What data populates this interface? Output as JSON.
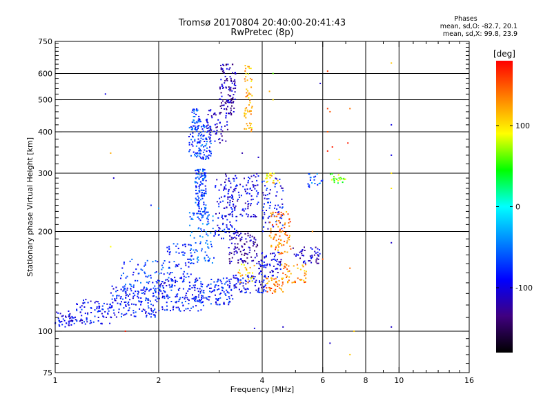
{
  "chart_data": {
    "type": "scatter",
    "title": "Tromsø 20170804 20:40:00-20:41:43",
    "subtitle": "RwPretec (8p)",
    "xlabel": "Frequency [MHz]",
    "ylabel": "Stationary phase Virtual Height [km]",
    "x_scale": "log",
    "y_scale": "log",
    "xlim": [
      1,
      16
    ],
    "ylim": [
      75,
      750
    ],
    "x_ticks": [
      1,
      2,
      4,
      6,
      8,
      10,
      16
    ],
    "x_tick_labels": [
      "1",
      "2",
      "4",
      "6",
      "8",
      "10",
      "16"
    ],
    "x_grid_lines": [
      2,
      4,
      6,
      8,
      10
    ],
    "y_ticks": [
      75,
      100,
      200,
      300,
      400,
      500,
      600,
      750
    ],
    "y_tick_labels": [
      "75",
      "100",
      "200",
      "300",
      "400",
      "500",
      "600",
      "750"
    ],
    "y_grid_lines": [
      100,
      200,
      300,
      400,
      500,
      600
    ],
    "grid": true,
    "colorbar": {
      "label": "[deg]",
      "range": [
        -180,
        180
      ],
      "ticks": [
        100,
        0,
        -100
      ],
      "tick_labels": [
        "100",
        "0",
        "-100"
      ],
      "colors": [
        "#ff0000",
        "#ff8000",
        "#ffff00",
        "#00ff00",
        "#00ffff",
        "#0080ff",
        "#0000ff",
        "#400080",
        "#000000"
      ]
    },
    "phase_stats": {
      "header": "Phases",
      "o_label": "mean, sd,O:",
      "o_values": "-82.7, 20.1",
      "x_label": "mean, sd,X:",
      "x_values": "99.8, 23.9"
    },
    "clusters": [
      {
        "f": [
          1.0,
          1.12
        ],
        "h": [
          102,
          115
        ],
        "phase": -95,
        "n": 40
      },
      {
        "f": [
          1.12,
          1.45
        ],
        "h": [
          105,
          125
        ],
        "phase": -90,
        "n": 90
      },
      {
        "f": [
          1.45,
          2.0
        ],
        "h": [
          110,
          138
        ],
        "phase": -85,
        "n": 150
      },
      {
        "f": [
          1.55,
          2.1
        ],
        "h": [
          125,
          165
        ],
        "phase": -70,
        "n": 80
      },
      {
        "f": [
          2.0,
          2.7
        ],
        "h": [
          115,
          145
        ],
        "phase": -85,
        "n": 150
      },
      {
        "f": [
          2.1,
          2.5
        ],
        "h": [
          145,
          185
        ],
        "phase": -75,
        "n": 60
      },
      {
        "f": [
          2.6,
          3.3
        ],
        "h": [
          120,
          145
        ],
        "phase": -80,
        "n": 110
      },
      {
        "f": [
          2.45,
          2.9
        ],
        "h": [
          160,
          230
        ],
        "phase": -60,
        "n": 90
      },
      {
        "f": [
          2.55,
          2.75
        ],
        "h": [
          220,
          310
        ],
        "phase": -70,
        "n": 120
      },
      {
        "f": [
          2.45,
          2.85
        ],
        "h": [
          330,
          420
        ],
        "phase": -70,
        "n": 130
      },
      {
        "f": [
          2.5,
          2.65
        ],
        "h": [
          420,
          470
        ],
        "phase": -70,
        "n": 30
      },
      {
        "f": [
          2.75,
          3.2
        ],
        "h": [
          370,
          470
        ],
        "phase": -110,
        "n": 60
      },
      {
        "f": [
          3.0,
          3.35
        ],
        "h": [
          450,
          640
        ],
        "phase": -120,
        "n": 110
      },
      {
        "f": [
          2.9,
          3.4
        ],
        "h": [
          190,
          290
        ],
        "phase": -90,
        "n": 80
      },
      {
        "f": [
          3.1,
          3.9
        ],
        "h": [
          220,
          300
        ],
        "phase": -100,
        "n": 120
      },
      {
        "f": [
          3.2,
          3.9
        ],
        "h": [
          160,
          200
        ],
        "phase": -120,
        "n": 100
      },
      {
        "f": [
          3.3,
          4.1
        ],
        "h": [
          130,
          148
        ],
        "phase": -95,
        "n": 80
      },
      {
        "f": [
          3.55,
          3.75
        ],
        "h": [
          400,
          640
        ],
        "phase": 115,
        "n": 60
      },
      {
        "f": [
          3.4,
          3.8
        ],
        "h": [
          140,
          160
        ],
        "phase": 110,
        "n": 25
      },
      {
        "f": [
          3.9,
          4.55
        ],
        "h": [
          145,
          175
        ],
        "phase": -100,
        "n": 70
      },
      {
        "f": [
          4.0,
          4.6
        ],
        "h": [
          200,
          290
        ],
        "phase": -90,
        "n": 70
      },
      {
        "f": [
          4.1,
          4.5
        ],
        "h": [
          280,
          300
        ],
        "phase": 100,
        "n": 20
      },
      {
        "f": [
          4.1,
          4.6
        ],
        "h": [
          130,
          145
        ],
        "phase": 140,
        "n": 40
      },
      {
        "f": [
          4.2,
          4.85
        ],
        "h": [
          170,
          230
        ],
        "phase": 135,
        "n": 90
      },
      {
        "f": [
          4.55,
          5.4
        ],
        "h": [
          140,
          160
        ],
        "phase": 130,
        "n": 50
      },
      {
        "f": [
          4.9,
          5.9
        ],
        "h": [
          160,
          180
        ],
        "phase": -110,
        "n": 50
      },
      {
        "f": [
          5.4,
          6.0
        ],
        "h": [
          270,
          300
        ],
        "phase": -60,
        "n": 20
      },
      {
        "f": [
          6.2,
          7.0
        ],
        "h": [
          280,
          300
        ],
        "phase": 60,
        "n": 20
      }
    ],
    "scattered_points": [
      {
        "f": 1.4,
        "h": 520,
        "phase": -100
      },
      {
        "f": 1.45,
        "h": 345,
        "phase": 120
      },
      {
        "f": 1.48,
        "h": 290,
        "phase": -110
      },
      {
        "f": 1.45,
        "h": 180,
        "phase": 90
      },
      {
        "f": 1.6,
        "h": 100,
        "phase": 170
      },
      {
        "f": 1.9,
        "h": 240,
        "phase": -80
      },
      {
        "f": 2.0,
        "h": 235,
        "phase": -30
      },
      {
        "f": 4.3,
        "h": 600,
        "phase": 60
      },
      {
        "f": 4.3,
        "h": 500,
        "phase": 100
      },
      {
        "f": 4.2,
        "h": 530,
        "phase": 120
      },
      {
        "f": 5.9,
        "h": 560,
        "phase": -110
      },
      {
        "f": 6.2,
        "h": 610,
        "phase": 160
      },
      {
        "f": 6.2,
        "h": 470,
        "phase": 160
      },
      {
        "f": 6.3,
        "h": 460,
        "phase": 150
      },
      {
        "f": 6.2,
        "h": 400,
        "phase": 150
      },
      {
        "f": 6.2,
        "h": 350,
        "phase": 170
      },
      {
        "f": 6.4,
        "h": 360,
        "phase": 170
      },
      {
        "f": 6.7,
        "h": 330,
        "phase": 100
      },
      {
        "f": 7.2,
        "h": 470,
        "phase": 140
      },
      {
        "f": 7.1,
        "h": 370,
        "phase": 170
      },
      {
        "f": 9.5,
        "h": 420,
        "phase": -100
      },
      {
        "f": 9.5,
        "h": 340,
        "phase": -100
      },
      {
        "f": 9.5,
        "h": 300,
        "phase": 100
      },
      {
        "f": 9.5,
        "h": 270,
        "phase": 100
      },
      {
        "f": 9.5,
        "h": 185,
        "phase": -110
      },
      {
        "f": 9.5,
        "h": 103,
        "phase": -110
      },
      {
        "f": 9.5,
        "h": 645,
        "phase": 110
      },
      {
        "f": 7.2,
        "h": 155,
        "phase": 140
      },
      {
        "f": 7.2,
        "h": 85,
        "phase": 110
      },
      {
        "f": 7.4,
        "h": 100,
        "phase": 110
      },
      {
        "f": 6.3,
        "h": 92,
        "phase": -110
      },
      {
        "f": 6.0,
        "h": 165,
        "phase": 150
      },
      {
        "f": 5.6,
        "h": 200,
        "phase": 130
      },
      {
        "f": 3.8,
        "h": 102,
        "phase": -100
      },
      {
        "f": 4.6,
        "h": 103,
        "phase": -110
      },
      {
        "f": 3.9,
        "h": 335,
        "phase": -110
      },
      {
        "f": 3.5,
        "h": 345,
        "phase": -120
      }
    ]
  }
}
